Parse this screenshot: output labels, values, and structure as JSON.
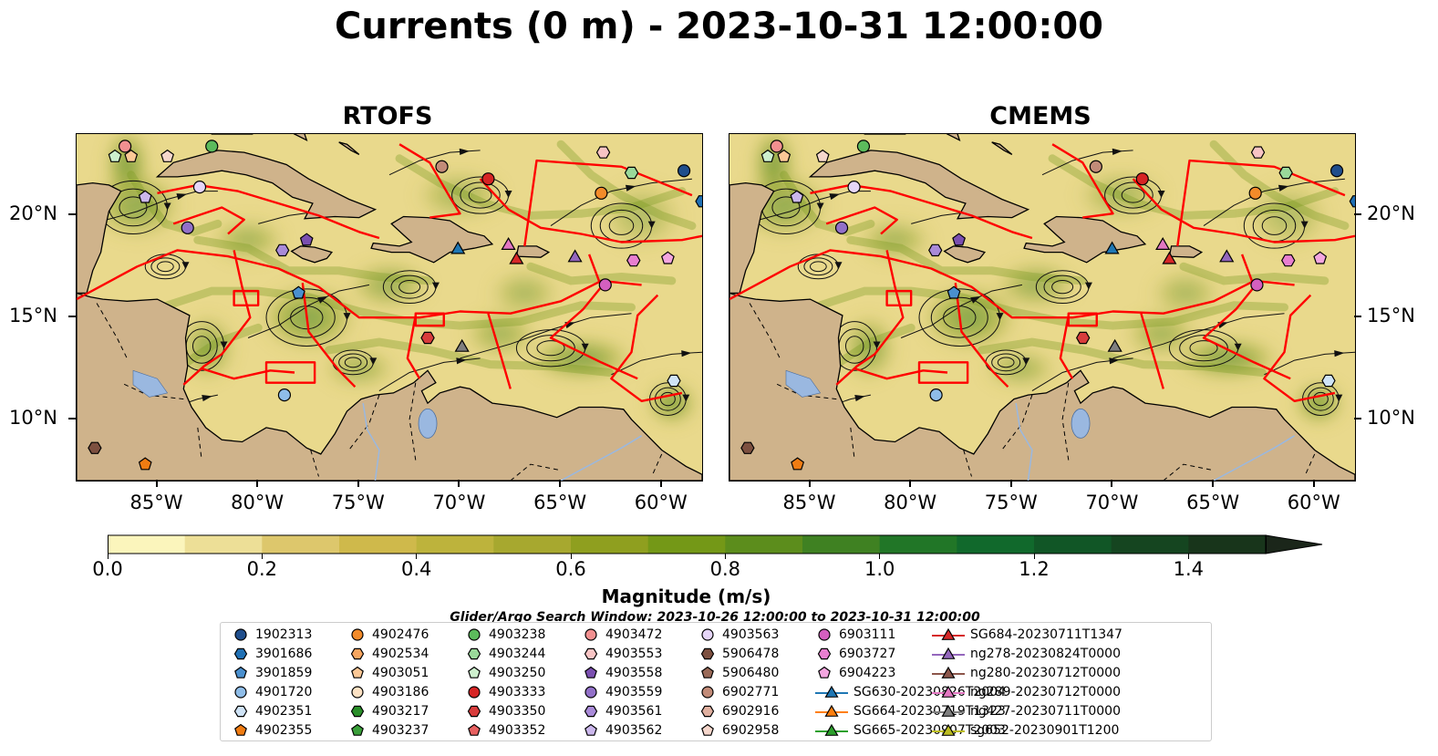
{
  "title": "Currents (0 m) - 2023-10-31 12:00:00",
  "panels": [
    {
      "title": "RTOFS"
    },
    {
      "title": "CMEMS"
    }
  ],
  "map": {
    "lon_range": [
      -89,
      -58
    ],
    "lat_range": [
      7,
      24
    ],
    "x_ticks": [
      "85°W",
      "80°W",
      "75°W",
      "70°W",
      "65°W",
      "60°W"
    ],
    "y_ticks": [
      "20°N",
      "15°N",
      "10°N"
    ],
    "land_color": "#cfb38b",
    "ocean_base_color": "#e9d98c",
    "boundary_color": "#ff0000",
    "lake_color": "#9ab8e0"
  },
  "colorbar": {
    "label": "Magnitude (m/s)",
    "range": [
      0.0,
      1.5
    ],
    "tick_labels": [
      "0.0",
      "0.2",
      "0.4",
      "0.6",
      "0.8",
      "1.0",
      "1.2",
      "1.4"
    ],
    "colors": [
      "#fbf5bc",
      "#eddf97",
      "#ddc76c",
      "#cfb94b",
      "#bdb33c",
      "#a7a82f",
      "#8f9f1f",
      "#749817",
      "#5c8d1c",
      "#3f8122",
      "#217627",
      "#11692c",
      "#115626",
      "#154520",
      "#18351b",
      "#1b261a"
    ]
  },
  "search_window": "Glider/Argo Search Window: 2023-10-26 12:00:00 to 2023-10-31 12:00:00",
  "legend": [
    {
      "label": "1902313",
      "marker": "circle",
      "color": "#1f4e8c"
    },
    {
      "label": "3901686",
      "marker": "hexagon",
      "color": "#2070b4"
    },
    {
      "label": "3901859",
      "marker": "pentagon",
      "color": "#4a90cf"
    },
    {
      "label": "4901720",
      "marker": "circle",
      "color": "#8fbde8"
    },
    {
      "label": "4902351",
      "marker": "hexagon",
      "color": "#cfe3f6"
    },
    {
      "label": "4902355",
      "marker": "pentagon",
      "color": "#f07c12"
    },
    {
      "label": "4902476",
      "marker": "circle",
      "color": "#f38b2a"
    },
    {
      "label": "4902534",
      "marker": "hexagon",
      "color": "#f7a660"
    },
    {
      "label": "4903051",
      "marker": "pentagon",
      "color": "#fbc896"
    },
    {
      "label": "4903186",
      "marker": "circle",
      "color": "#fde2c4"
    },
    {
      "label": "4903217",
      "marker": "hexagon",
      "color": "#2a8f2a"
    },
    {
      "label": "4903237",
      "marker": "pentagon",
      "color": "#3aa03a"
    },
    {
      "label": "4903238",
      "marker": "circle",
      "color": "#5cbb5c"
    },
    {
      "label": "4903244",
      "marker": "hexagon",
      "color": "#9ad99a"
    },
    {
      "label": "4903250",
      "marker": "pentagon",
      "color": "#cdf0cd"
    },
    {
      "label": "4903333",
      "marker": "circle",
      "color": "#d62424"
    },
    {
      "label": "4903350",
      "marker": "hexagon",
      "color": "#d83c3c"
    },
    {
      "label": "4903352",
      "marker": "pentagon",
      "color": "#e86060"
    },
    {
      "label": "4903472",
      "marker": "circle",
      "color": "#f29090"
    },
    {
      "label": "4903553",
      "marker": "hexagon",
      "color": "#f8c4c4"
    },
    {
      "label": "4903558",
      "marker": "pentagon",
      "color": "#7b4fb0"
    },
    {
      "label": "4903559",
      "marker": "circle",
      "color": "#9270c8"
    },
    {
      "label": "4903561",
      "marker": "hexagon",
      "color": "#a98ad8"
    },
    {
      "label": "4903562",
      "marker": "pentagon",
      "color": "#cbb7ec"
    },
    {
      "label": "4903563",
      "marker": "circle",
      "color": "#e6d6f8"
    },
    {
      "label": "5906478",
      "marker": "hexagon",
      "color": "#7d5040"
    },
    {
      "label": "5906480",
      "marker": "pentagon",
      "color": "#9a6a58"
    },
    {
      "label": "6902771",
      "marker": "circle",
      "color": "#c28b78"
    },
    {
      "label": "6902916",
      "marker": "hexagon",
      "color": "#e0b0a0"
    },
    {
      "label": "6902958",
      "marker": "pentagon",
      "color": "#f6d7cc"
    },
    {
      "label": "6903111",
      "marker": "circle",
      "color": "#d45fbf"
    },
    {
      "label": "6903727",
      "marker": "hexagon",
      "color": "#e87fd0"
    },
    {
      "label": "6904223",
      "marker": "pentagon",
      "color": "#f4a6e0"
    },
    {
      "label": "SG630-20230826T2004",
      "marker": "triangle-line",
      "color": "#1f77b4"
    },
    {
      "label": "SG664-20230719T1323",
      "marker": "triangle-line",
      "color": "#ff7f0e"
    },
    {
      "label": "SG665-20230907T2003",
      "marker": "triangle-line",
      "color": "#2ca02c"
    },
    {
      "label": "SG684-20230711T1347",
      "marker": "triangle-line",
      "color": "#d62728"
    },
    {
      "label": "ng278-20230824T0000",
      "marker": "triangle-line",
      "color": "#9467bd"
    },
    {
      "label": "ng280-20230712T0000",
      "marker": "triangle-line",
      "color": "#8c564b"
    },
    {
      "label": "ng289-20230712T0000",
      "marker": "triangle-line",
      "color": "#e377c2"
    },
    {
      "label": "ng427-20230711T0000",
      "marker": "triangle-line",
      "color": "#7f7f7f"
    },
    {
      "label": "sg652-20230901T1200",
      "marker": "triangle-line",
      "color": "#bcbd22"
    }
  ],
  "map_markers": [
    {
      "id": "1902313",
      "lon": -58.9,
      "lat": 22.2
    },
    {
      "id": "3901686",
      "lon": -58.0,
      "lat": 20.7
    },
    {
      "id": "3901859",
      "lon": -78.0,
      "lat": 16.2
    },
    {
      "id": "4901720",
      "lon": -78.7,
      "lat": 11.2
    },
    {
      "id": "4902351",
      "lon": -59.4,
      "lat": 11.9
    },
    {
      "id": "4902355",
      "lon": -85.6,
      "lat": 7.8
    },
    {
      "id": "4902476",
      "lon": -63.0,
      "lat": 21.1
    },
    {
      "id": "4903051",
      "lon": -86.3,
      "lat": 22.9
    },
    {
      "id": "4903238",
      "lon": -82.3,
      "lat": 23.4
    },
    {
      "id": "4903244",
      "lon": -61.5,
      "lat": 22.1
    },
    {
      "id": "4903250",
      "lon": -87.1,
      "lat": 22.9
    },
    {
      "id": "4903333",
      "lon": -68.6,
      "lat": 21.8
    },
    {
      "id": "4903350",
      "lon": -71.6,
      "lat": 14.0
    },
    {
      "id": "4903472",
      "lon": -86.6,
      "lat": 23.4
    },
    {
      "id": "4903553",
      "lon": -62.9,
      "lat": 23.1
    },
    {
      "id": "4903558",
      "lon": -77.6,
      "lat": 18.8
    },
    {
      "id": "4903559",
      "lon": -83.5,
      "lat": 19.4
    },
    {
      "id": "4903561",
      "lon": -78.8,
      "lat": 18.3
    },
    {
      "id": "4903562",
      "lon": -85.6,
      "lat": 20.9
    },
    {
      "id": "4903563",
      "lon": -82.9,
      "lat": 21.4
    },
    {
      "id": "5906478",
      "lon": -88.1,
      "lat": 8.6
    },
    {
      "id": "6902771",
      "lon": -70.9,
      "lat": 22.4
    },
    {
      "id": "6902958",
      "lon": -84.5,
      "lat": 22.9
    },
    {
      "id": "6903111",
      "lon": -62.8,
      "lat": 16.6
    },
    {
      "id": "6903727",
      "lon": -61.4,
      "lat": 17.8
    },
    {
      "id": "6904223",
      "lon": -59.7,
      "lat": 17.9
    },
    {
      "id": "SG630-20230826T2004",
      "lon": -70.1,
      "lat": 18.4
    },
    {
      "id": "SG684-20230711T1347",
      "lon": -67.2,
      "lat": 17.9
    },
    {
      "id": "ng278-20230824T0000",
      "lon": -64.3,
      "lat": 18.0
    },
    {
      "id": "ng289-20230712T0000",
      "lon": -67.6,
      "lat": 18.6
    },
    {
      "id": "ng427-20230711T0000",
      "lon": -69.9,
      "lat": 13.6
    }
  ]
}
